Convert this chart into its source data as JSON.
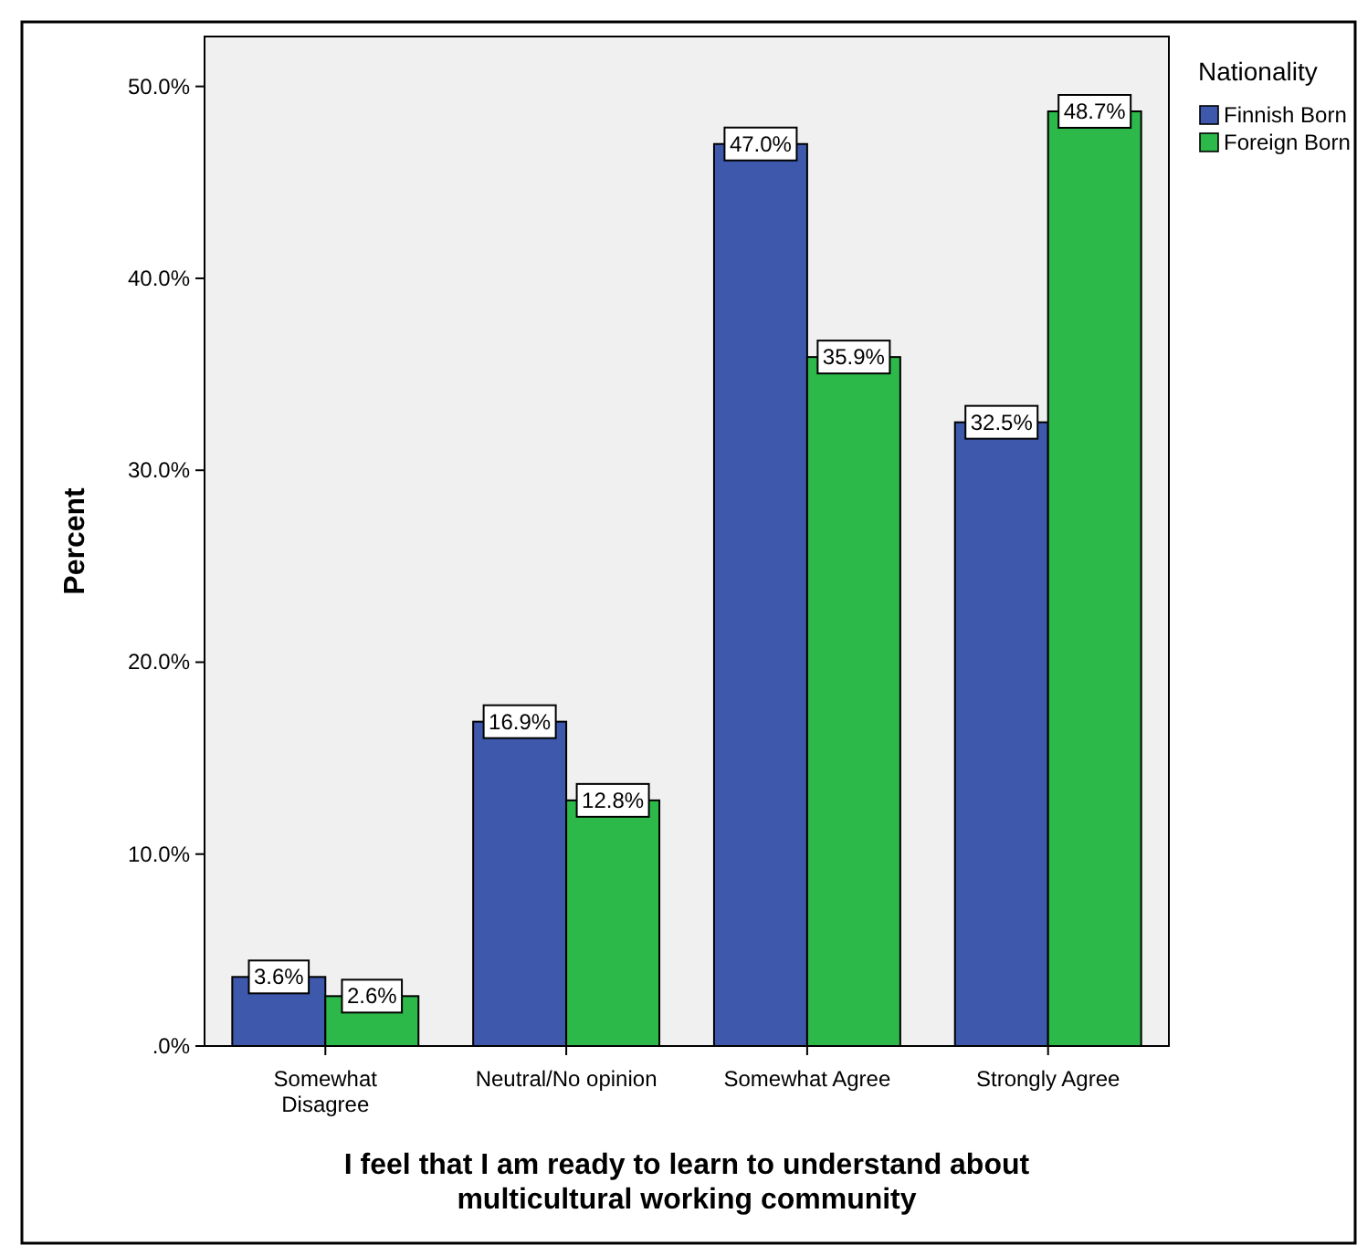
{
  "chart_data": {
    "type": "bar",
    "xlabel": "I feel that I am ready to learn to understand about\nmulticultural working community",
    "ylabel": "Percent",
    "legend_title": "Nationality",
    "legend": "top right",
    "grid": false,
    "categories": [
      "Somewhat\nDisagree",
      "Neutral/No opinion",
      "Somewhat Agree",
      "Strongly Agree"
    ],
    "series": [
      {
        "name": "Finnish Born",
        "color": "#3e58ac",
        "values": [
          3.6,
          16.9,
          47.0,
          32.5
        ],
        "value_labels": [
          "3.6%",
          "16.9%",
          "47.0%",
          "32.5%"
        ]
      },
      {
        "name": "Foreign Born",
        "color": "#2db84a",
        "values": [
          2.6,
          12.8,
          35.9,
          48.7
        ],
        "value_labels": [
          "2.6%",
          "12.8%",
          "35.9%",
          "48.7%"
        ]
      }
    ],
    "ylim": [
      0,
      52.6
    ],
    "yticks": [
      {
        "value": 0,
        "label": ".0%"
      },
      {
        "value": 10,
        "label": "10.0%"
      },
      {
        "value": 20,
        "label": "20.0%"
      },
      {
        "value": 30,
        "label": "30.0%"
      },
      {
        "value": 40,
        "label": "40.0%"
      },
      {
        "value": 50,
        "label": "50.0%"
      }
    ]
  }
}
